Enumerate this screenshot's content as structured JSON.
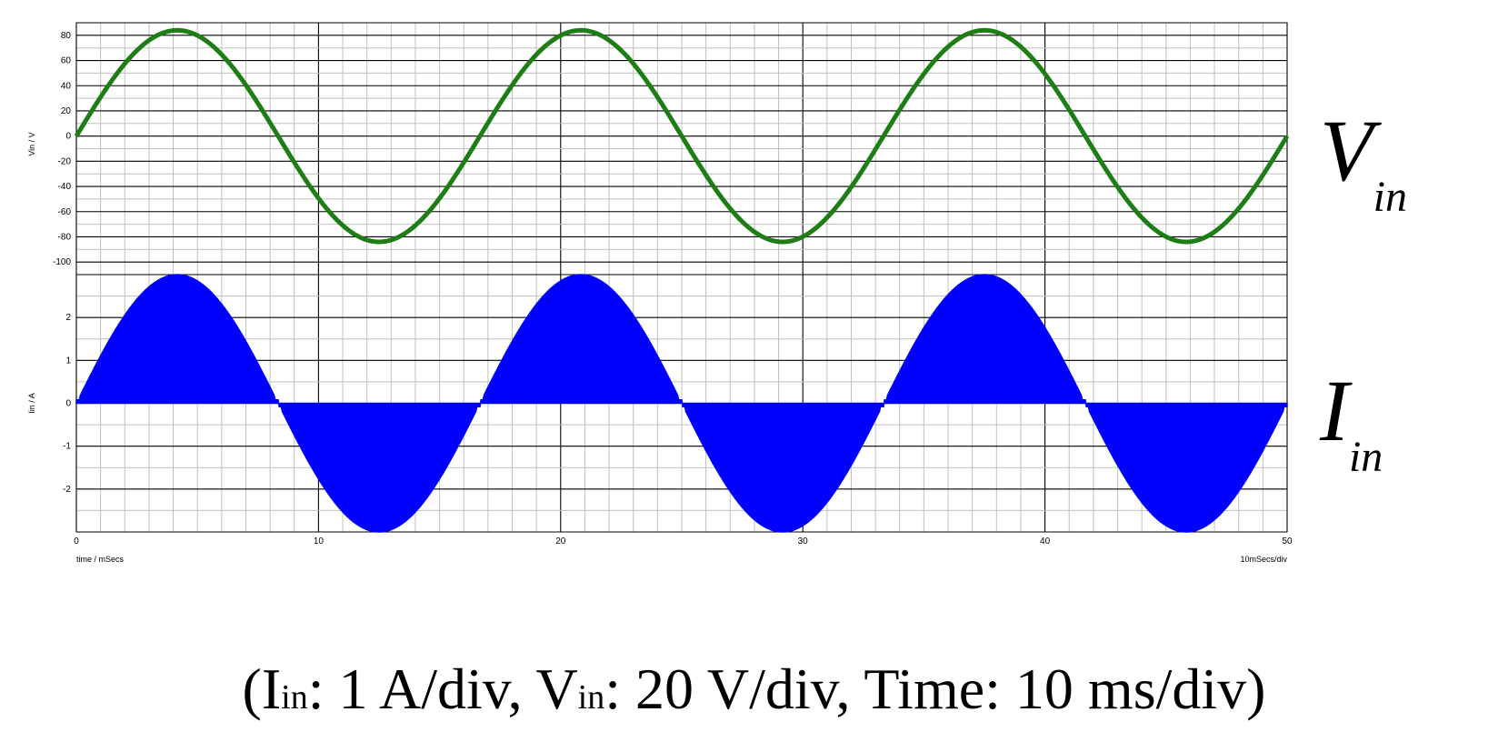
{
  "chart_data": [
    {
      "type": "line",
      "ylabel": "Vin / V",
      "x_range": [
        0,
        50
      ],
      "ylim": [
        -110,
        90
      ],
      "yticks": [
        80,
        60,
        40,
        20,
        0,
        -20,
        -40,
        -60,
        -80,
        -100
      ],
      "grid": true,
      "series": [
        {
          "name": "Vin",
          "color": "#1e7d14",
          "amplitude": 84,
          "frequency_hz": 60,
          "x": [
            0,
            4.17,
            8.33,
            12.5,
            16.67,
            20.83,
            25.0,
            29.17,
            33.33,
            37.5,
            41.67,
            45.83,
            50.0
          ],
          "y": [
            0,
            84,
            0,
            -84,
            0,
            84,
            0,
            -84,
            0,
            84,
            0,
            -84,
            0
          ]
        }
      ]
    },
    {
      "type": "area",
      "ylabel": "Iin / A",
      "xlabel": "time / mSecs",
      "x_scale_label": "10mSecs/div",
      "x_range": [
        0,
        50
      ],
      "ylim": [
        -3,
        3
      ],
      "yticks": [
        2,
        1,
        0,
        -1,
        -2
      ],
      "xticks": [
        0,
        10,
        20,
        30,
        40,
        50
      ],
      "grid": true,
      "series": [
        {
          "name": "Iin",
          "color": "#0000ff",
          "amplitude": 3.0,
          "frequency_hz": 60,
          "x": [
            0,
            4.17,
            8.33,
            12.5,
            16.67,
            20.83,
            25.0,
            29.17,
            33.33,
            37.5,
            41.67,
            45.83,
            50.0
          ],
          "y": [
            0,
            3.0,
            0,
            -3.0,
            0,
            3.0,
            0,
            -3.0,
            0,
            3.0,
            0,
            -3.0,
            0
          ]
        }
      ]
    }
  ],
  "labels": {
    "vin_main": "V",
    "vin_sub": "in",
    "iin_main": "I",
    "iin_sub": "in"
  },
  "caption": {
    "open": "(I",
    "sub1": "in",
    "part2": ": 1 A/div, V",
    "sub2": "in",
    "part3": ": 20 V/div, Time: 10 ms/div)"
  }
}
